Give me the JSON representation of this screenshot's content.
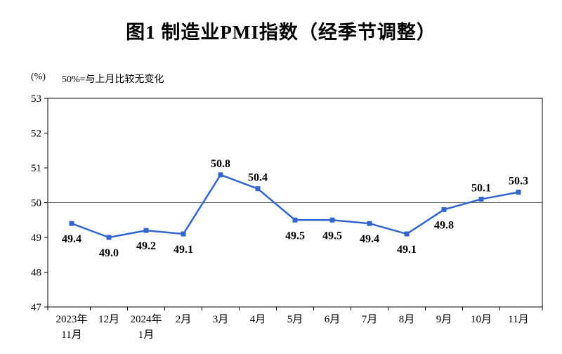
{
  "header": {
    "title": "图1 制造业PMI指数（经季节调整）"
  },
  "chart_data": {
    "type": "line",
    "title": "图1 制造业PMI指数（经季节调整）",
    "unit_label": "(%)",
    "note": "50%=与上月比较无变化",
    "categories": [
      "2023年|11月",
      "12月",
      "2024年|1月",
      "2月",
      "3月",
      "4月",
      "5月",
      "6月",
      "7月",
      "8月",
      "9月",
      "10月",
      "11月"
    ],
    "values": [
      49.4,
      49.0,
      49.2,
      49.1,
      50.8,
      50.4,
      49.5,
      49.5,
      49.4,
      49.1,
      49.8,
      50.1,
      50.3
    ],
    "data_labels": [
      "49.4",
      "49.0",
      "49.2",
      "49.1",
      "50.8",
      "50.4",
      "49.5",
      "49.5",
      "49.4",
      "49.1",
      "49.8",
      "50.1",
      "50.3"
    ],
    "label_positions": [
      "below",
      "below",
      "below",
      "below",
      "above",
      "above",
      "below",
      "below",
      "below",
      "below",
      "below",
      "above",
      "above"
    ],
    "ylim": [
      47,
      53
    ],
    "ytick_step": 1,
    "yticks": [
      "47",
      "48",
      "49",
      "50",
      "51",
      "52",
      "53"
    ],
    "reference_line": 50,
    "line_color": "#3366CC",
    "axis_color": "#000000",
    "reference_line_color": "#595959",
    "grid": false,
    "legend_position": "none",
    "marker": "square"
  }
}
